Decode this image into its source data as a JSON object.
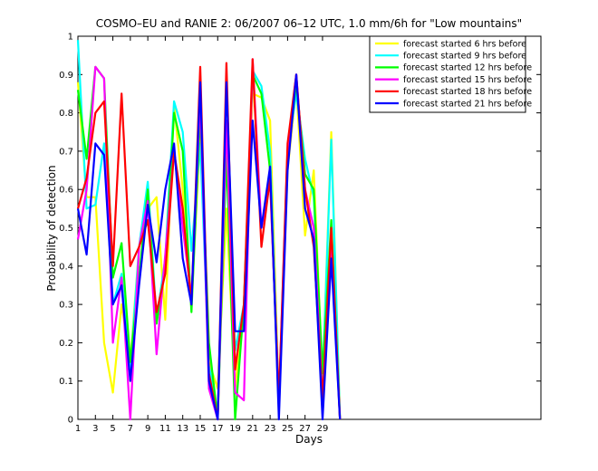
{
  "chart_data": {
    "type": "line",
    "title": "COSMO–EU and RANIE 2: 06/2007 06–12 UTC, 1.0 mm/6h for \"Low mountains\"",
    "xlabel": "Days",
    "ylabel": "Probability of detection",
    "xlim": [
      1,
      54
    ],
    "ylim": [
      0,
      1
    ],
    "x_ticks": [
      1,
      3,
      5,
      7,
      9,
      11,
      13,
      15,
      17,
      19,
      21,
      23,
      25,
      27,
      29
    ],
    "y_ticks": [
      0,
      0.1,
      0.2,
      0.3,
      0.4,
      0.5,
      0.6,
      0.7,
      0.8,
      0.9,
      1
    ],
    "legend_position": "top-right",
    "x": [
      1,
      2,
      3,
      4,
      5,
      6,
      7,
      8,
      9,
      10,
      11,
      12,
      13,
      14,
      15,
      16,
      17,
      18,
      19,
      20,
      21,
      22,
      23,
      24,
      25,
      26,
      27,
      28,
      29,
      30,
      31
    ],
    "series": [
      {
        "name": "forecast started 6 hrs before",
        "color": "#ffff00",
        "values": [
          0.88,
          0.58,
          0.58,
          0.2,
          0.07,
          0.3,
          0.15,
          0.45,
          0.55,
          0.58,
          0.26,
          0.82,
          0.6,
          0.3,
          0.75,
          0.15,
          0.08,
          0.55,
          0.08,
          0.3,
          0.85,
          0.84,
          0.78,
          0.05,
          0.65,
          0.87,
          0.48,
          0.65,
          0.1,
          0.75,
          0.0
        ]
      },
      {
        "name": "forecast started 9 hrs before",
        "color": "#00ffff",
        "values": [
          0.99,
          0.55,
          0.56,
          0.72,
          0.3,
          0.38,
          0.13,
          0.45,
          0.62,
          0.26,
          0.42,
          0.83,
          0.75,
          0.44,
          0.72,
          0.14,
          0.02,
          0.7,
          0.18,
          0.3,
          0.91,
          0.87,
          0.7,
          0.03,
          0.7,
          0.85,
          0.68,
          0.58,
          0.1,
          0.73,
          0.0
        ]
      },
      {
        "name": "forecast started 12 hrs before",
        "color": "#00ff00",
        "values": [
          0.86,
          0.68,
          0.92,
          0.89,
          0.37,
          0.46,
          0.15,
          0.37,
          0.6,
          0.25,
          0.4,
          0.8,
          0.7,
          0.28,
          0.8,
          0.2,
          0.0,
          0.7,
          0.0,
          0.3,
          0.9,
          0.85,
          0.65,
          0.02,
          0.68,
          0.88,
          0.64,
          0.6,
          0.12,
          0.52,
          0.0
        ]
      },
      {
        "name": "forecast started 15 hrs before",
        "color": "#ff00ff",
        "values": [
          0.47,
          0.6,
          0.92,
          0.89,
          0.2,
          0.37,
          0.0,
          0.45,
          0.57,
          0.17,
          0.43,
          0.7,
          0.5,
          0.32,
          0.84,
          0.08,
          0.0,
          0.78,
          0.07,
          0.05,
          0.94,
          0.5,
          0.62,
          0.05,
          0.7,
          0.9,
          0.6,
          0.5,
          0.05,
          0.45,
          0.0
        ]
      },
      {
        "name": "forecast started 18 hrs before",
        "color": "#ff0000",
        "values": [
          0.55,
          0.63,
          0.8,
          0.83,
          0.4,
          0.85,
          0.4,
          0.45,
          0.52,
          0.28,
          0.38,
          0.7,
          0.55,
          0.3,
          0.92,
          0.12,
          0.0,
          0.93,
          0.13,
          0.3,
          0.94,
          0.45,
          0.63,
          0.05,
          0.72,
          0.9,
          0.6,
          0.45,
          0.05,
          0.5,
          0.0
        ]
      },
      {
        "name": "forecast started 21 hrs before",
        "color": "#0000ff",
        "values": [
          0.55,
          0.43,
          0.72,
          0.69,
          0.3,
          0.35,
          0.1,
          0.35,
          0.56,
          0.41,
          0.6,
          0.72,
          0.42,
          0.3,
          0.88,
          0.1,
          0.0,
          0.88,
          0.23,
          0.23,
          0.78,
          0.5,
          0.66,
          0.0,
          0.65,
          0.9,
          0.55,
          0.47,
          0.0,
          0.42,
          0.0
        ]
      }
    ]
  }
}
